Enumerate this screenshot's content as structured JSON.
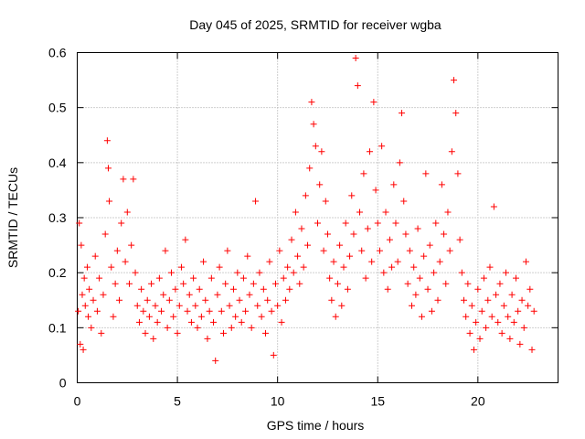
{
  "chart_data": {
    "type": "scatter",
    "title": "Day 045 of 2025, SRMTID for receiver wgba",
    "xlabel": "GPS time / hours",
    "ylabel": "SRMTID / TECUs",
    "xlim": [
      0,
      24
    ],
    "ylim": [
      0,
      0.6
    ],
    "xticks": [
      0,
      5,
      10,
      15,
      20
    ],
    "yticks": [
      0,
      0.1,
      0.2,
      0.3,
      0.4,
      0.5,
      0.6
    ],
    "xtick_labels": [
      "0",
      "5",
      "10",
      "15",
      "20"
    ],
    "ytick_labels": [
      "0",
      "0.1",
      "0.2",
      "0.3",
      "0.4",
      "0.5",
      "0.6"
    ],
    "grid": true,
    "marker": "+",
    "color": "#ff0000",
    "series": [
      {
        "name": "SRMTID",
        "points": [
          [
            0.05,
            0.13
          ],
          [
            0.1,
            0.29
          ],
          [
            0.15,
            0.07
          ],
          [
            0.2,
            0.25
          ],
          [
            0.25,
            0.16
          ],
          [
            0.3,
            0.06
          ],
          [
            0.35,
            0.19
          ],
          [
            0.4,
            0.14
          ],
          [
            0.5,
            0.21
          ],
          [
            0.55,
            0.12
          ],
          [
            0.6,
            0.17
          ],
          [
            0.7,
            0.1
          ],
          [
            0.8,
            0.15
          ],
          [
            0.9,
            0.23
          ],
          [
            1.0,
            0.13
          ],
          [
            1.1,
            0.19
          ],
          [
            1.2,
            0.09
          ],
          [
            1.3,
            0.16
          ],
          [
            1.4,
            0.27
          ],
          [
            1.5,
            0.44
          ],
          [
            1.55,
            0.39
          ],
          [
            1.6,
            0.33
          ],
          [
            1.7,
            0.21
          ],
          [
            1.8,
            0.12
          ],
          [
            1.9,
            0.18
          ],
          [
            2.0,
            0.24
          ],
          [
            2.1,
            0.15
          ],
          [
            2.2,
            0.29
          ],
          [
            2.3,
            0.37
          ],
          [
            2.4,
            0.22
          ],
          [
            2.5,
            0.31
          ],
          [
            2.6,
            0.18
          ],
          [
            2.7,
            0.25
          ],
          [
            2.8,
            0.37
          ],
          [
            2.9,
            0.2
          ],
          [
            3.0,
            0.14
          ],
          [
            3.1,
            0.11
          ],
          [
            3.2,
            0.17
          ],
          [
            3.3,
            0.13
          ],
          [
            3.4,
            0.09
          ],
          [
            3.5,
            0.15
          ],
          [
            3.6,
            0.12
          ],
          [
            3.7,
            0.18
          ],
          [
            3.8,
            0.08
          ],
          [
            3.9,
            0.14
          ],
          [
            4.0,
            0.11
          ],
          [
            4.1,
            0.19
          ],
          [
            4.2,
            0.13
          ],
          [
            4.3,
            0.16
          ],
          [
            4.4,
            0.24
          ],
          [
            4.5,
            0.1
          ],
          [
            4.6,
            0.15
          ],
          [
            4.7,
            0.2
          ],
          [
            4.8,
            0.12
          ],
          [
            4.9,
            0.17
          ],
          [
            5.0,
            0.09
          ],
          [
            5.1,
            0.14
          ],
          [
            5.2,
            0.21
          ],
          [
            5.3,
            0.18
          ],
          [
            5.4,
            0.26
          ],
          [
            5.5,
            0.13
          ],
          [
            5.6,
            0.16
          ],
          [
            5.7,
            0.11
          ],
          [
            5.8,
            0.19
          ],
          [
            5.9,
            0.14
          ],
          [
            6.0,
            0.1
          ],
          [
            6.1,
            0.17
          ],
          [
            6.2,
            0.12
          ],
          [
            6.3,
            0.22
          ],
          [
            6.4,
            0.15
          ],
          [
            6.5,
            0.08
          ],
          [
            6.6,
            0.13
          ],
          [
            6.7,
            0.19
          ],
          [
            6.8,
            0.11
          ],
          [
            6.9,
            0.04
          ],
          [
            7.0,
            0.16
          ],
          [
            7.1,
            0.21
          ],
          [
            7.2,
            0.13
          ],
          [
            7.3,
            0.09
          ],
          [
            7.4,
            0.18
          ],
          [
            7.5,
            0.24
          ],
          [
            7.6,
            0.14
          ],
          [
            7.7,
            0.1
          ],
          [
            7.8,
            0.17
          ],
          [
            7.9,
            0.12
          ],
          [
            8.0,
            0.2
          ],
          [
            8.1,
            0.15
          ],
          [
            8.2,
            0.11
          ],
          [
            8.3,
            0.19
          ],
          [
            8.4,
            0.13
          ],
          [
            8.5,
            0.23
          ],
          [
            8.6,
            0.16
          ],
          [
            8.7,
            0.1
          ],
          [
            8.8,
            0.18
          ],
          [
            8.9,
            0.33
          ],
          [
            9.0,
            0.14
          ],
          [
            9.1,
            0.2
          ],
          [
            9.2,
            0.12
          ],
          [
            9.3,
            0.17
          ],
          [
            9.4,
            0.09
          ],
          [
            9.5,
            0.15
          ],
          [
            9.6,
            0.22
          ],
          [
            9.7,
            0.13
          ],
          [
            9.8,
            0.05
          ],
          [
            9.9,
            0.18
          ],
          [
            10.0,
            0.14
          ],
          [
            10.1,
            0.24
          ],
          [
            10.2,
            0.11
          ],
          [
            10.3,
            0.19
          ],
          [
            10.4,
            0.15
          ],
          [
            10.5,
            0.21
          ],
          [
            10.6,
            0.17
          ],
          [
            10.7,
            0.26
          ],
          [
            10.8,
            0.2
          ],
          [
            10.9,
            0.31
          ],
          [
            11.0,
            0.23
          ],
          [
            11.1,
            0.18
          ],
          [
            11.2,
            0.28
          ],
          [
            11.3,
            0.21
          ],
          [
            11.4,
            0.34
          ],
          [
            11.5,
            0.25
          ],
          [
            11.6,
            0.39
          ],
          [
            11.7,
            0.51
          ],
          [
            11.8,
            0.47
          ],
          [
            11.9,
            0.43
          ],
          [
            12.0,
            0.29
          ],
          [
            12.1,
            0.36
          ],
          [
            12.2,
            0.42
          ],
          [
            12.3,
            0.24
          ],
          [
            12.4,
            0.33
          ],
          [
            12.5,
            0.27
          ],
          [
            12.6,
            0.19
          ],
          [
            12.7,
            0.15
          ],
          [
            12.8,
            0.22
          ],
          [
            12.9,
            0.12
          ],
          [
            13.0,
            0.18
          ],
          [
            13.1,
            0.25
          ],
          [
            13.2,
            0.14
          ],
          [
            13.3,
            0.21
          ],
          [
            13.4,
            0.29
          ],
          [
            13.5,
            0.17
          ],
          [
            13.6,
            0.23
          ],
          [
            13.7,
            0.34
          ],
          [
            13.8,
            0.27
          ],
          [
            13.9,
            0.59
          ],
          [
            14.0,
            0.54
          ],
          [
            14.1,
            0.31
          ],
          [
            14.2,
            0.24
          ],
          [
            14.3,
            0.38
          ],
          [
            14.4,
            0.19
          ],
          [
            14.5,
            0.28
          ],
          [
            14.6,
            0.42
          ],
          [
            14.7,
            0.22
          ],
          [
            14.8,
            0.51
          ],
          [
            14.9,
            0.35
          ],
          [
            15.0,
            0.29
          ],
          [
            15.1,
            0.24
          ],
          [
            15.2,
            0.43
          ],
          [
            15.3,
            0.2
          ],
          [
            15.4,
            0.31
          ],
          [
            15.5,
            0.17
          ],
          [
            15.6,
            0.26
          ],
          [
            15.7,
            0.21
          ],
          [
            15.8,
            0.36
          ],
          [
            15.9,
            0.29
          ],
          [
            16.0,
            0.22
          ],
          [
            16.1,
            0.4
          ],
          [
            16.2,
            0.49
          ],
          [
            16.3,
            0.33
          ],
          [
            16.4,
            0.27
          ],
          [
            16.5,
            0.18
          ],
          [
            16.6,
            0.24
          ],
          [
            16.7,
            0.14
          ],
          [
            16.8,
            0.21
          ],
          [
            16.9,
            0.16
          ],
          [
            17.0,
            0.28
          ],
          [
            17.1,
            0.19
          ],
          [
            17.2,
            0.12
          ],
          [
            17.3,
            0.23
          ],
          [
            17.4,
            0.38
          ],
          [
            17.5,
            0.17
          ],
          [
            17.6,
            0.25
          ],
          [
            17.7,
            0.13
          ],
          [
            17.8,
            0.2
          ],
          [
            17.9,
            0.29
          ],
          [
            18.0,
            0.15
          ],
          [
            18.1,
            0.22
          ],
          [
            18.2,
            0.36
          ],
          [
            18.3,
            0.27
          ],
          [
            18.4,
            0.18
          ],
          [
            18.5,
            0.31
          ],
          [
            18.6,
            0.24
          ],
          [
            18.7,
            0.42
          ],
          [
            18.8,
            0.55
          ],
          [
            18.9,
            0.49
          ],
          [
            19.0,
            0.38
          ],
          [
            19.1,
            0.26
          ],
          [
            19.2,
            0.2
          ],
          [
            19.3,
            0.15
          ],
          [
            19.4,
            0.12
          ],
          [
            19.5,
            0.18
          ],
          [
            19.6,
            0.09
          ],
          [
            19.7,
            0.14
          ],
          [
            19.8,
            0.06
          ],
          [
            19.9,
            0.11
          ],
          [
            20.0,
            0.17
          ],
          [
            20.1,
            0.08
          ],
          [
            20.2,
            0.13
          ],
          [
            20.3,
            0.19
          ],
          [
            20.4,
            0.1
          ],
          [
            20.5,
            0.15
          ],
          [
            20.6,
            0.21
          ],
          [
            20.7,
            0.12
          ],
          [
            20.8,
            0.32
          ],
          [
            20.9,
            0.16
          ],
          [
            21.0,
            0.11
          ],
          [
            21.1,
            0.18
          ],
          [
            21.2,
            0.09
          ],
          [
            21.3,
            0.14
          ],
          [
            21.4,
            0.2
          ],
          [
            21.5,
            0.12
          ],
          [
            21.6,
            0.08
          ],
          [
            21.7,
            0.16
          ],
          [
            21.8,
            0.11
          ],
          [
            21.9,
            0.19
          ],
          [
            22.0,
            0.13
          ],
          [
            22.1,
            0.07
          ],
          [
            22.2,
            0.15
          ],
          [
            22.3,
            0.1
          ],
          [
            22.4,
            0.22
          ],
          [
            22.5,
            0.14
          ],
          [
            22.6,
            0.17
          ],
          [
            22.7,
            0.06
          ],
          [
            22.8,
            0.13
          ]
        ]
      }
    ]
  }
}
